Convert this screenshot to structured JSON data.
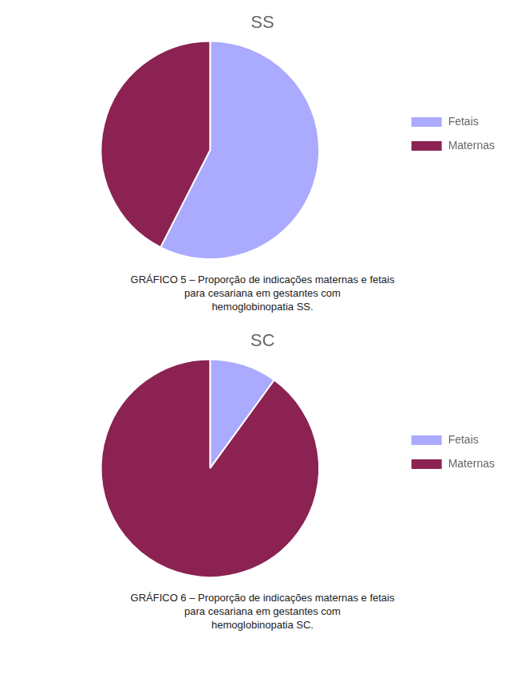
{
  "chart_data": [
    {
      "type": "pie",
      "title": "SS",
      "categories": [
        "Fetais",
        "Maternas"
      ],
      "values": [
        57.5,
        42.5
      ],
      "colors": [
        "#aaaaff",
        "#8B2252"
      ],
      "legend": "right",
      "annotations": [
        "GRÁFICO 5 – Proporção de indicações maternas e fetais\npara cesariana em gestantes com\nhemoglobinopatia SS."
      ]
    },
    {
      "type": "pie",
      "title": "SC",
      "categories": [
        "Fetais",
        "Maternas"
      ],
      "values": [
        10.0,
        90.0
      ],
      "colors": [
        "#aaaaff",
        "#8B2252"
      ],
      "legend": "right",
      "annotations": [
        "GRÁFICO 6 – Proporção de indicações maternas e fetais\npara cesariana em gestantes com\nhemoglobinopatia SC."
      ]
    }
  ]
}
